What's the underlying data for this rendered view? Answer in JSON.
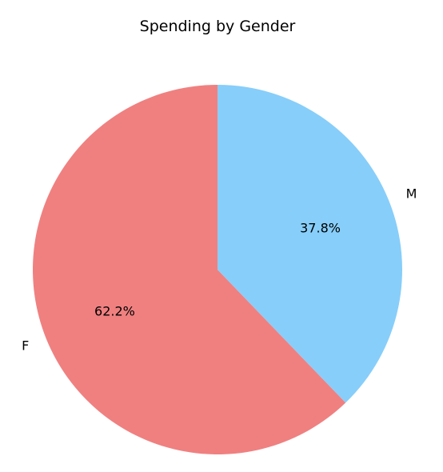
{
  "chart_data": {
    "type": "pie",
    "title": "Spending by Gender",
    "slices": [
      {
        "label": "F",
        "value": 62.2,
        "pct_label": "62.2%",
        "color": "#F08080"
      },
      {
        "label": "M",
        "value": 37.8,
        "pct_label": "37.8%",
        "color": "#87CEFA"
      }
    ],
    "start_angle_deg": 90,
    "direction": "counterclockwise"
  }
}
